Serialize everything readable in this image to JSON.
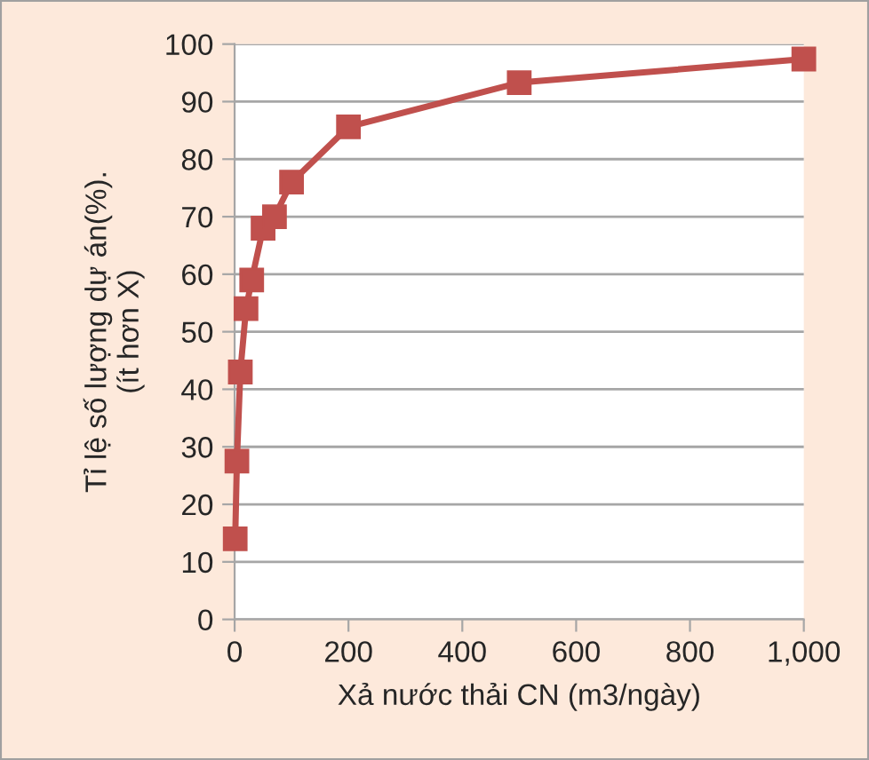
{
  "chart_data": {
    "type": "line",
    "xlabel": "Xả nước thải CN (m3/ngày)",
    "ylabel": "Tỉ lệ số lượng dự án(%).\n(ít hơn X)",
    "x": [
      1,
      4,
      10,
      20,
      30,
      50,
      70,
      100,
      200,
      500,
      1000
    ],
    "series": [
      {
        "color": "#c0504d",
        "values": [
          14,
          27.5,
          43,
          54,
          59,
          68,
          70,
          76,
          85.6,
          93.3,
          97.4
        ]
      }
    ],
    "xlim": [
      0,
      1000
    ],
    "xticks": [
      0,
      200,
      400,
      600,
      800,
      {
        "value": 1000,
        "label": "1,000"
      }
    ],
    "ylim": [
      0,
      100
    ],
    "yticks": [
      0,
      10,
      20,
      30,
      40,
      50,
      60,
      70,
      80,
      90,
      100
    ],
    "grid": "y",
    "marker": "square",
    "line_style": "solid"
  }
}
